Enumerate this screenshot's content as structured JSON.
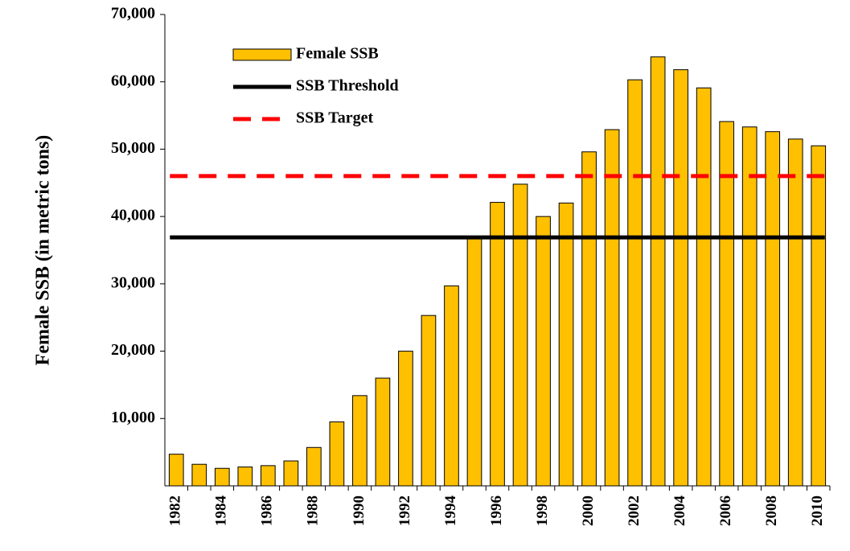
{
  "chart_data": {
    "type": "bar",
    "y_label": "Female SSB (in metric tons)",
    "categories": [
      "1982",
      null,
      "1984",
      null,
      "1986",
      null,
      "1988",
      null,
      "1990",
      null,
      "1992",
      null,
      "1994",
      null,
      "1996",
      null,
      "1998",
      null,
      "2000",
      null,
      "2002",
      null,
      "2004",
      null,
      "2006",
      null,
      "2008",
      null,
      "2010"
    ],
    "series": [
      {
        "name": "Female SSB",
        "color": "#ffc000",
        "values": [
          4700,
          3200,
          2600,
          2800,
          3000,
          3700,
          5700,
          9500,
          13400,
          16000,
          20000,
          25300,
          29700,
          37000,
          42100,
          44800,
          40000,
          42000,
          49600,
          52900,
          60300,
          63700,
          61800,
          59100,
          54100,
          53300,
          52600,
          51500,
          50500
        ]
      }
    ],
    "lines": [
      {
        "name": "SSB Threshold",
        "color": "#000000",
        "value": 36900,
        "style": "solid"
      },
      {
        "name": "SSB Target",
        "color": "#ff0000",
        "value": 46000,
        "style": "dashed"
      }
    ],
    "ylim": [
      0,
      70000
    ],
    "yticks": [
      {
        "value": 10000,
        "label": "10,000"
      },
      {
        "value": 20000,
        "label": "20,000"
      },
      {
        "value": 30000,
        "label": "30,000"
      },
      {
        "value": 40000,
        "label": "40,000"
      },
      {
        "value": 50000,
        "label": "50,000"
      },
      {
        "value": 60000,
        "label": "60,000"
      },
      {
        "value": 70000,
        "label": "70,000"
      }
    ]
  }
}
